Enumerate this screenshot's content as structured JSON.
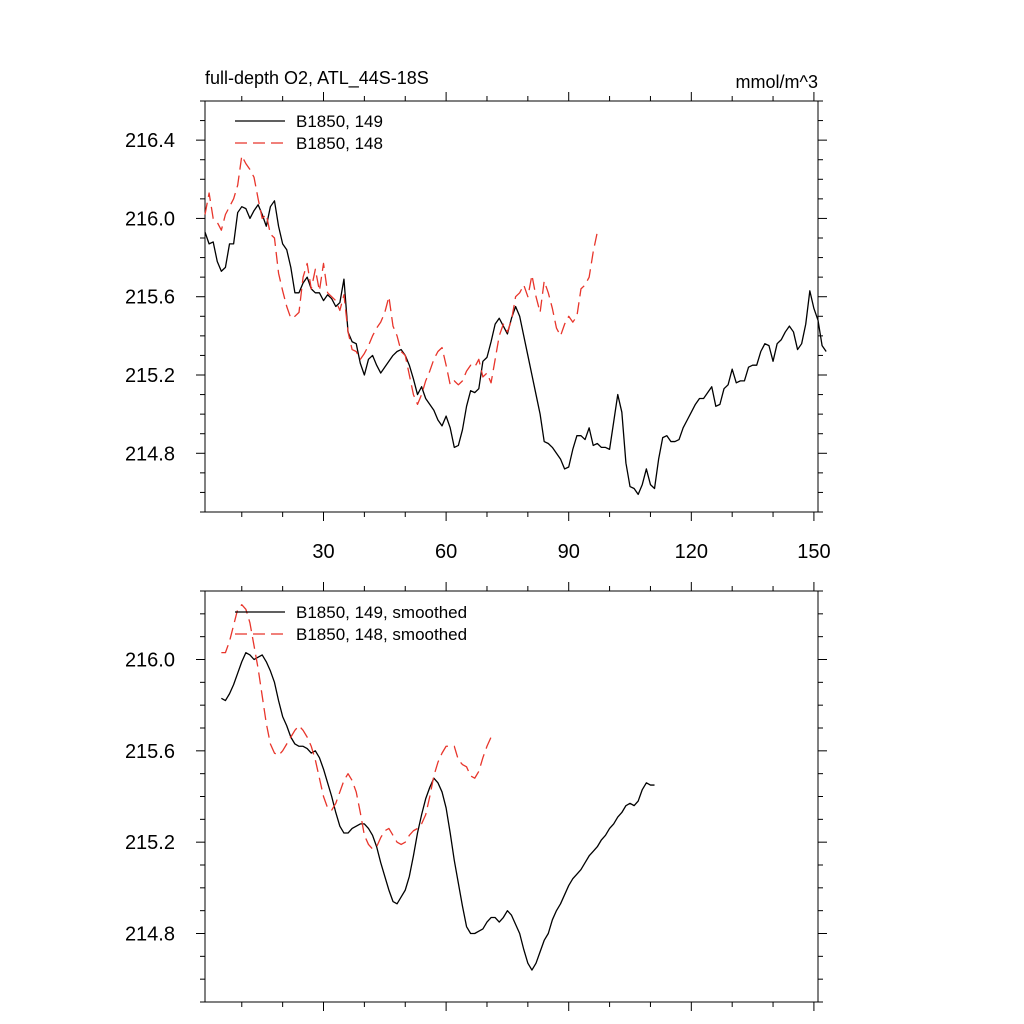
{
  "chart_data": [
    {
      "type": "line",
      "title": "full-depth O2, ATL_44S-18S",
      "units": "mmol/m^3",
      "xlim": [
        1,
        151
      ],
      "ylim": [
        214.5,
        216.6
      ],
      "x_ticks": [
        30,
        60,
        90,
        120,
        150
      ],
      "y_ticks": [
        214.8,
        215.2,
        215.6,
        216.0,
        216.4
      ],
      "series": [
        {
          "name": "B1850, 149",
          "color": "#000000",
          "dash": "solid",
          "x_start": 1,
          "values": [
            215.93,
            215.87,
            215.88,
            215.78,
            215.73,
            215.75,
            215.87,
            215.87,
            216.03,
            216.06,
            216.05,
            216.0,
            216.04,
            216.07,
            216.02,
            215.96,
            216.06,
            216.09,
            215.96,
            215.87,
            215.84,
            215.75,
            215.62,
            215.62,
            215.67,
            215.7,
            215.64,
            215.62,
            215.62,
            215.58,
            215.61,
            215.59,
            215.55,
            215.57,
            215.69,
            215.42,
            215.37,
            215.36,
            215.26,
            215.2,
            215.28,
            215.3,
            215.25,
            215.21,
            215.24,
            215.27,
            215.3,
            215.32,
            215.33,
            215.3,
            215.25,
            215.18,
            215.1,
            215.14,
            215.08,
            215.05,
            215.02,
            214.97,
            214.94,
            214.99,
            214.93,
            214.83,
            214.84,
            214.92,
            215.04,
            215.12,
            215.11,
            215.13,
            215.27,
            215.29,
            215.37,
            215.46,
            215.49,
            215.45,
            215.41,
            215.49,
            215.55,
            215.5,
            215.4,
            215.3,
            215.2,
            215.1,
            215.0,
            214.86,
            214.85,
            214.83,
            214.8,
            214.77,
            214.72,
            214.73,
            214.82,
            214.89,
            214.89,
            214.87,
            214.93,
            214.84,
            214.85,
            214.83,
            214.83,
            214.82,
            214.96,
            215.1,
            215.01,
            214.75,
            214.63,
            214.62,
            214.59,
            214.64,
            214.72,
            214.64,
            214.62,
            214.77,
            214.88,
            214.89,
            214.86,
            214.86,
            214.87,
            214.93,
            214.97,
            215.01,
            215.05,
            215.08,
            215.08,
            215.11,
            215.14,
            215.04,
            215.05,
            215.13,
            215.15,
            215.23,
            215.16,
            215.17,
            215.17,
            215.24,
            215.25,
            215.25,
            215.32,
            215.36,
            215.35,
            215.27,
            215.36,
            215.38,
            215.42,
            215.45,
            215.42,
            215.33,
            215.36,
            215.46,
            215.63,
            215.54,
            215.48,
            215.35,
            215.32
          ]
        },
        {
          "name": "B1850, 148",
          "color": "#e8352b",
          "dash": "dashed",
          "x_start": 1,
          "values": [
            216.02,
            216.13,
            216.0,
            215.98,
            215.94,
            216.02,
            216.06,
            216.1,
            216.17,
            216.32,
            216.28,
            216.25,
            216.21,
            216.1,
            216.0,
            216.02,
            215.92,
            215.9,
            215.72,
            215.63,
            215.55,
            215.49,
            215.5,
            215.52,
            215.7,
            215.77,
            215.64,
            215.74,
            215.63,
            215.77,
            215.62,
            215.6,
            215.58,
            215.53,
            215.61,
            215.42,
            215.33,
            215.32,
            215.28,
            215.31,
            215.35,
            215.4,
            215.44,
            215.47,
            215.52,
            215.6,
            215.45,
            215.4,
            215.32,
            215.3,
            215.2,
            215.1,
            215.05,
            215.1,
            215.17,
            215.22,
            215.28,
            215.32,
            215.34,
            215.25,
            215.15,
            215.17,
            215.15,
            215.17,
            215.22,
            215.25,
            215.24,
            215.28,
            215.19,
            215.21,
            215.16,
            215.28,
            215.4,
            215.46,
            215.42,
            215.48,
            215.6,
            215.62,
            215.66,
            215.6,
            215.71,
            215.6,
            215.52,
            215.68,
            215.62,
            215.54,
            215.44,
            215.4,
            215.46,
            215.5,
            215.47,
            215.5,
            215.64,
            215.66,
            215.7,
            215.83,
            215.93
          ]
        }
      ]
    },
    {
      "type": "line",
      "title": "",
      "xlim": [
        1,
        151
      ],
      "ylim": [
        214.5,
        216.3
      ],
      "x_ticks": [
        30,
        60,
        90,
        120,
        150
      ],
      "y_ticks": [
        214.8,
        215.2,
        215.6,
        216.0
      ],
      "series": [
        {
          "name": "B1850, 149, smoothed",
          "color": "#000000",
          "dash": "solid",
          "x_start": 5,
          "values": [
            215.83,
            215.82,
            215.85,
            215.89,
            215.94,
            215.99,
            216.03,
            216.02,
            216.0,
            216.01,
            216.02,
            215.99,
            215.95,
            215.9,
            215.82,
            215.75,
            215.71,
            215.66,
            215.63,
            215.62,
            215.62,
            215.61,
            215.59,
            215.6,
            215.57,
            215.52,
            215.46,
            215.4,
            215.33,
            215.27,
            215.24,
            215.24,
            215.26,
            215.27,
            215.28,
            215.28,
            215.26,
            215.23,
            215.18,
            215.11,
            215.05,
            214.99,
            214.94,
            214.93,
            214.96,
            214.99,
            215.05,
            215.14,
            215.24,
            215.32,
            215.39,
            215.44,
            215.48,
            215.46,
            215.42,
            215.35,
            215.24,
            215.12,
            215.02,
            214.92,
            214.83,
            214.8,
            214.8,
            214.81,
            214.82,
            214.85,
            214.87,
            214.87,
            214.85,
            214.87,
            214.9,
            214.88,
            214.84,
            214.8,
            214.73,
            214.67,
            214.64,
            214.67,
            214.72,
            214.77,
            214.8,
            214.86,
            214.9,
            214.93,
            214.97,
            215.01,
            215.04,
            215.06,
            215.08,
            215.11,
            215.14,
            215.16,
            215.18,
            215.21,
            215.23,
            215.26,
            215.28,
            215.31,
            215.33,
            215.36,
            215.37,
            215.36,
            215.38,
            215.43,
            215.46,
            215.45,
            215.45
          ]
        },
        {
          "name": "B1850, 148, smoothed",
          "color": "#e8352b",
          "dash": "dashed",
          "x_start": 5,
          "values": [
            216.03,
            216.03,
            216.08,
            216.15,
            216.22,
            216.24,
            216.22,
            216.16,
            216.06,
            215.96,
            215.84,
            215.72,
            215.63,
            215.59,
            215.58,
            215.6,
            215.63,
            215.66,
            215.69,
            215.71,
            215.69,
            215.66,
            215.62,
            215.56,
            215.48,
            215.4,
            215.35,
            215.34,
            215.37,
            215.42,
            215.47,
            215.5,
            215.47,
            215.42,
            215.33,
            215.23,
            215.19,
            215.17,
            215.18,
            215.22,
            215.25,
            215.26,
            215.23,
            215.2,
            215.19,
            215.2,
            215.23,
            215.25,
            215.26,
            215.28,
            215.32,
            215.4,
            215.49,
            215.55,
            215.59,
            215.62,
            215.62,
            215.62,
            215.56,
            215.54,
            215.53,
            215.49,
            215.48,
            215.51,
            215.57,
            215.62,
            215.66
          ]
        }
      ]
    }
  ]
}
